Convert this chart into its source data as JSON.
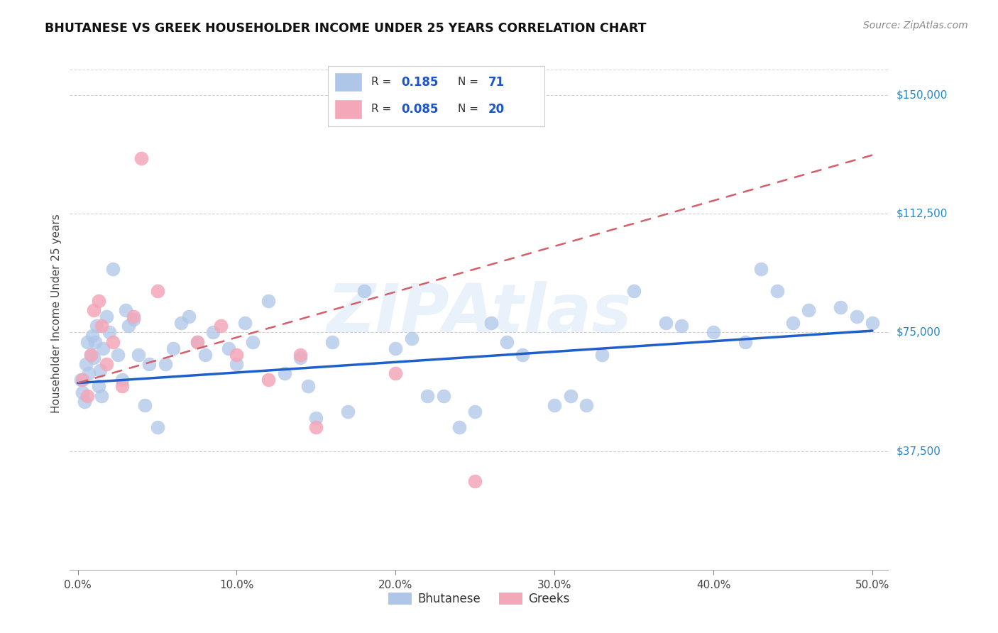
{
  "title": "BHUTANESE VS GREEK HOUSEHOLDER INCOME UNDER 25 YEARS CORRELATION CHART",
  "source": "Source: ZipAtlas.com",
  "xlabel_vals": [
    0.0,
    10.0,
    20.0,
    30.0,
    40.0,
    50.0
  ],
  "ylim": [
    0,
    162000
  ],
  "xlim": [
    -0.5,
    51
  ],
  "bhutanese_color": "#aec6e8",
  "greeks_color": "#f4a7b9",
  "blue_line_color": "#1f5fcc",
  "pink_line_color": "#d45f6a",
  "watermark": "ZIPAtlas",
  "legend_label_blue": "Bhutanese",
  "legend_label_pink": "Greeks",
  "bg_color": "#ffffff",
  "grid_color": "#cccccc",
  "right_label_color": "#2288cc",
  "bhutanese_x": [
    0.2,
    0.3,
    0.4,
    0.5,
    0.6,
    0.7,
    0.8,
    0.9,
    1.0,
    1.1,
    1.2,
    1.3,
    1.4,
    1.5,
    1.6,
    1.8,
    2.0,
    2.2,
    2.5,
    2.8,
    3.0,
    3.2,
    3.5,
    3.8,
    4.2,
    4.5,
    5.0,
    5.5,
    6.0,
    6.5,
    7.0,
    7.5,
    8.0,
    8.5,
    9.5,
    10.0,
    10.5,
    11.0,
    12.0,
    13.0,
    14.0,
    14.5,
    15.0,
    16.0,
    17.0,
    18.0,
    20.0,
    21.0,
    22.0,
    23.0,
    24.0,
    25.0,
    26.0,
    27.0,
    28.0,
    30.0,
    31.0,
    32.0,
    33.0,
    35.0,
    37.0,
    38.0,
    40.0,
    42.0,
    43.0,
    44.0,
    45.0,
    46.0,
    48.0,
    49.0,
    50.0
  ],
  "bhutanese_y": [
    60000,
    56000,
    53000,
    65000,
    72000,
    62000,
    68000,
    74000,
    67000,
    72000,
    77000,
    58000,
    63000,
    55000,
    70000,
    80000,
    75000,
    95000,
    68000,
    60000,
    82000,
    77000,
    79000,
    68000,
    52000,
    65000,
    45000,
    65000,
    70000,
    78000,
    80000,
    72000,
    68000,
    75000,
    70000,
    65000,
    78000,
    72000,
    85000,
    62000,
    67000,
    58000,
    48000,
    72000,
    50000,
    88000,
    70000,
    73000,
    55000,
    55000,
    45000,
    50000,
    78000,
    72000,
    68000,
    52000,
    55000,
    52000,
    68000,
    88000,
    78000,
    77000,
    75000,
    72000,
    95000,
    88000,
    78000,
    82000,
    83000,
    80000,
    78000
  ],
  "greeks_x": [
    0.3,
    0.6,
    0.8,
    1.0,
    1.3,
    1.5,
    1.8,
    2.2,
    2.8,
    3.5,
    4.0,
    5.0,
    7.5,
    9.0,
    10.0,
    12.0,
    14.0,
    15.0,
    20.0,
    25.0
  ],
  "greeks_y": [
    60000,
    55000,
    68000,
    82000,
    85000,
    77000,
    65000,
    72000,
    58000,
    80000,
    130000,
    88000,
    72000,
    77000,
    68000,
    60000,
    68000,
    45000,
    62000,
    28000
  ],
  "blue_line_x0": 0,
  "blue_line_y0": 59000,
  "blue_line_x1": 50,
  "blue_line_y1": 75500,
  "pink_line_x0": 0,
  "pink_line_y0": 59000,
  "pink_line_x1": 50,
  "pink_line_y1": 131000
}
